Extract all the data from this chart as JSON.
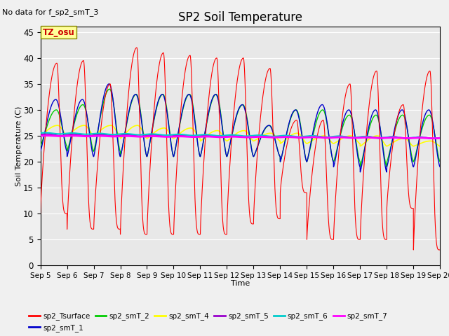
{
  "title": "SP2 Soil Temperature",
  "no_data_text": "No data for f_sp2_smT_3",
  "xlabel": "Time",
  "ylabel": "Soil Temperature (C)",
  "ylim": [
    0,
    46
  ],
  "yticks": [
    0,
    5,
    10,
    15,
    20,
    25,
    30,
    35,
    40,
    45
  ],
  "n_days": 15,
  "tz_label": "TZ_osu",
  "bg_color": "#e8e8e8",
  "series_colors": {
    "sp2_Tsurface": "#ff0000",
    "sp2_smT_1": "#0000cc",
    "sp2_smT_2": "#00cc00",
    "sp2_smT_4": "#ffff00",
    "sp2_smT_5": "#9900cc",
    "sp2_smT_6": "#00cccc",
    "sp2_smT_7": "#ff00ff"
  }
}
